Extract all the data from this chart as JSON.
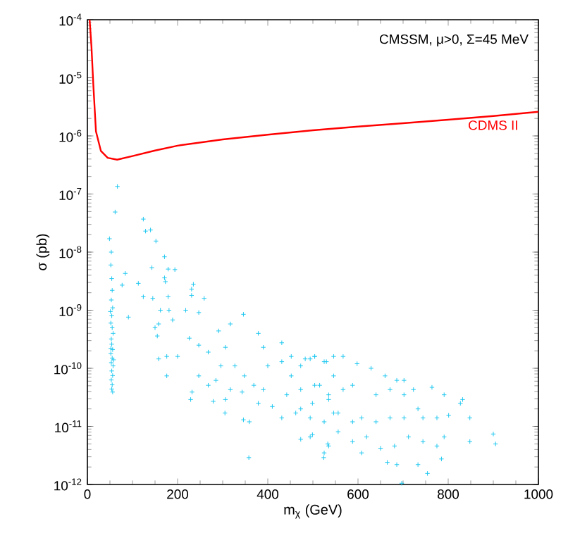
{
  "chart_data": {
    "type": "scatter",
    "xlabel": "m$_{χ}$ (GeV)",
    "ylabel": "σ (pb)",
    "annotations": [
      "CMSSM, μ>0, Σ=45 MeV"
    ],
    "xlim": [
      0,
      1000
    ],
    "xticks": [
      0,
      200,
      400,
      600,
      800,
      1000
    ],
    "ylim": [
      1e-12,
      0.0001
    ],
    "yticks": [
      {
        "value": 1e-12,
        "label": "10$^{-12}$"
      },
      {
        "value": 1e-11,
        "label": "10$^{-11}$"
      },
      {
        "value": 1e-10,
        "label": "10$^{-10}$"
      },
      {
        "value": 1e-09,
        "label": "10$^{-9}$"
      },
      {
        "value": 1e-08,
        "label": "10$^{-8}$"
      },
      {
        "value": 1e-07,
        "label": "10$^{-7}$"
      },
      {
        "value": 1e-06,
        "label": "10$^{-6}$"
      },
      {
        "value": 1e-05,
        "label": "10$^{-5}$"
      },
      {
        "value": 0.0001,
        "label": "10$^{-4}$"
      }
    ],
    "log": "y",
    "grid": false,
    "legend": false,
    "marker": "cross",
    "series": [
      {
        "type": "line",
        "name": "CDMS II",
        "color": "#ff0000",
        "line_style": "solid",
        "marker": "none",
        "x": [
          5,
          9,
          13,
          19,
          30,
          45,
          66,
          100,
          150,
          200,
          300,
          400,
          500,
          600,
          700,
          800,
          900,
          1000
        ],
        "values": [
          0.0001,
          3.5e-05,
          8e-06,
          1.2e-06,
          5.5e-07,
          4.2e-07,
          3.9e-07,
          4.5e-07,
          5.6e-07,
          6.8e-07,
          8.7e-07,
          1.05e-06,
          1.25e-06,
          1.45e-06,
          1.65e-06,
          1.9e-06,
          2.2e-06,
          2.6e-06
        ]
      },
      {
        "color": "#20c8f0",
        "x": [
          66.6,
          61.5,
          124,
          129,
          140,
          152,
          49,
          171,
          143,
          179,
          194,
          84,
          77,
          113,
          171,
          173,
          235,
          231,
          124,
          145,
          179,
          231,
          259,
          91,
          162,
          181,
          158,
          189,
          218,
          247,
          150,
          155,
          158,
          176,
          200,
          176,
          346,
          317,
          291,
          226,
          247,
          268,
          247,
          268,
          232,
          229,
          279,
          305,
          346,
          359,
          379,
          410,
          431,
          473,
          400,
          431,
          452,
          473,
          494,
          504,
          530,
          546,
          515,
          535,
          499,
          546,
          473,
          499,
          533,
          379,
          390,
          306,
          327,
          348,
          296,
          369,
          343,
          317,
          285,
          306,
          390,
          53,
          52,
          54,
          55,
          53,
          56,
          54,
          52,
          55,
          57,
          53,
          54,
          56,
          52,
          55,
          53,
          57,
          54,
          56,
          53,
          55,
          54,
          56,
          52,
          58,
          51,
          431,
          452,
          483,
          504,
          525,
          546,
          567,
          598,
          629,
          660,
          686,
          702,
          723,
          764,
          791,
          832,
          827,
          442,
          473,
          504,
          535,
          567,
          588,
          640,
          671,
          702,
          733,
          462,
          494,
          525,
          556,
          588,
          608,
          640,
          671,
          702,
          744,
          775,
          801,
          848,
          494,
          535,
          556,
          588,
          619,
          650,
          681,
          712,
          744,
          775,
          791,
          848,
          900,
          905,
          525,
          608,
          665,
          686,
          733,
          785,
          754,
          697,
          358,
          524
        ],
        "values": [
          1.35e-07,
          4.9e-08,
          3.7e-08,
          2.3e-08,
          2.4e-08,
          1.55e-08,
          1.7e-08,
          8.3e-09,
          5.4e-09,
          5.1e-09,
          5e-09,
          4.3e-09,
          2.7e-09,
          2.9e-09,
          3.6e-09,
          3.1e-09,
          2.8e-09,
          2.3e-09,
          1.7e-09,
          1.6e-09,
          1.7e-09,
          1.8e-09,
          1.6e-09,
          7.6e-10,
          1e-09,
          1e-09,
          5.8e-10,
          6.8e-10,
          1e-09,
          9.1e-10,
          5e-10,
          3.6e-10,
          1.45e-10,
          1.6e-10,
          1.6e-10,
          7.4e-11,
          8.5e-10,
          5.8e-10,
          4.4e-10,
          3.3e-10,
          2.5e-10,
          1.9e-10,
          7.4e-11,
          5.1e-11,
          3.9e-11,
          2.9e-11,
          2.7e-11,
          1.7e-11,
          1.3e-11,
          1.2e-11,
          2.5e-11,
          2.2e-11,
          1.4e-11,
          2e-11,
          1.1e-10,
          1.3e-10,
          7.4e-11,
          1.1e-10,
          1.45e-10,
          1.6e-10,
          1.3e-10,
          7.4e-11,
          5.1e-11,
          3.5e-11,
          2.5e-11,
          1.7e-11,
          6e-12,
          7.2e-12,
          5e-12,
          4e-10,
          2.3e-10,
          2.3e-10,
          1.1e-10,
          7.4e-11,
          1.1e-10,
          5.1e-11,
          3.9e-11,
          4.3e-11,
          6.2e-11,
          2.9e-11,
          4.3e-11,
          1e-08,
          6e-09,
          3.5e-09,
          2.2e-09,
          1.5e-09,
          1.1e-09,
          8e-10,
          6e-10,
          5e-10,
          4e-10,
          3.2e-10,
          2.6e-10,
          2.1e-10,
          1.8e-10,
          1.5e-10,
          1.25e-10,
          1.1e-10,
          9e-11,
          7.5e-11,
          6.3e-11,
          5.2e-11,
          4.4e-11,
          3.9e-11,
          2.2e-10,
          1.4e-10,
          9.5e-10,
          2.75e-10,
          1.6e-10,
          1.45e-10,
          1.6e-10,
          1.3e-10,
          1.6e-10,
          1.6e-10,
          1.2e-10,
          1e-10,
          7.4e-11,
          6.2e-11,
          6.2e-11,
          4.3e-11,
          4.7e-11,
          3.5e-11,
          2.9e-11,
          2.5e-11,
          3.5e-11,
          4.3e-11,
          5.1e-11,
          2.9e-11,
          4.3e-11,
          5.1e-11,
          3.5e-11,
          4.3e-11,
          3.5e-11,
          2e-11,
          1.7e-11,
          1.4e-11,
          1.2e-11,
          1.7e-11,
          1.2e-11,
          1.4e-11,
          1.2e-11,
          1.4e-11,
          1.4e-11,
          1.4e-11,
          1.4e-11,
          1.55e-11,
          1.4e-11,
          6.6e-12,
          4.6e-12,
          8.1e-12,
          5.5e-12,
          6.6e-12,
          4.2e-12,
          4.6e-12,
          6.6e-12,
          5.5e-12,
          4.6e-12,
          6.6e-12,
          5.5e-12,
          7.4e-12,
          5e-12,
          3.5e-12,
          3.5e-12,
          2.4e-12,
          2.2e-12,
          2.2e-12,
          2.75e-12,
          1.55e-12,
          1.05e-12,
          2.9e-12,
          2.9e-12
        ]
      }
    ]
  }
}
